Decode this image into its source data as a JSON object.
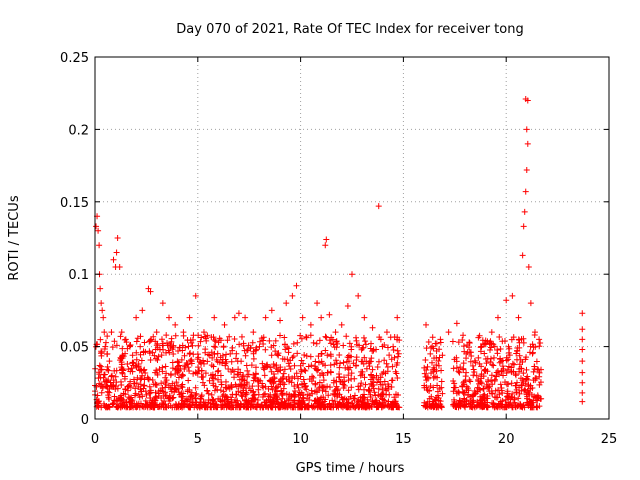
{
  "chart_data": {
    "type": "scatter",
    "title": "Day 070 of 2021, Rate Of TEC Index for receiver tong",
    "xlabel": "GPS time / hours",
    "ylabel": "ROTI / TECUs",
    "xlim": [
      0,
      25
    ],
    "ylim": [
      0,
      0.25
    ],
    "x_ticks": [
      0,
      5,
      10,
      15,
      20,
      25
    ],
    "x_tick_labels": [
      "0",
      "5",
      "10",
      "15",
      "20",
      "25"
    ],
    "y_ticks": [
      0,
      0.05,
      0.1,
      0.15,
      0.2,
      0.25
    ],
    "y_tick_labels": [
      "0",
      "0.05",
      "0.1",
      "0.15",
      "0.2",
      "0.25"
    ],
    "grid": true,
    "marker": "+",
    "color": "#ff0000",
    "series": [
      {
        "name": "ROTI",
        "note": "dense cloud of many points; values below are a representative estimate read from the figure",
        "points": [
          [
            0.05,
            0.133
          ],
          [
            0.1,
            0.14
          ],
          [
            0.15,
            0.13
          ],
          [
            0.2,
            0.12
          ],
          [
            0.22,
            0.1
          ],
          [
            0.25,
            0.09
          ],
          [
            0.3,
            0.08
          ],
          [
            0.35,
            0.075
          ],
          [
            0.4,
            0.07
          ],
          [
            0.45,
            0.06
          ],
          [
            0.5,
            0.05
          ],
          [
            0.6,
            0.045
          ],
          [
            0.7,
            0.04
          ],
          [
            0.8,
            0.06
          ],
          [
            0.9,
            0.11
          ],
          [
            1.0,
            0.105
          ],
          [
            1.05,
            0.115
          ],
          [
            1.1,
            0.125
          ],
          [
            1.2,
            0.105
          ],
          [
            1.3,
            0.06
          ],
          [
            1.5,
            0.055
          ],
          [
            1.7,
            0.05
          ],
          [
            2.0,
            0.07
          ],
          [
            2.3,
            0.075
          ],
          [
            2.6,
            0.09
          ],
          [
            2.7,
            0.088
          ],
          [
            3.0,
            0.06
          ],
          [
            3.3,
            0.08
          ],
          [
            3.6,
            0.07
          ],
          [
            3.9,
            0.065
          ],
          [
            4.3,
            0.06
          ],
          [
            4.6,
            0.07
          ],
          [
            4.9,
            0.085
          ],
          [
            5.3,
            0.06
          ],
          [
            5.8,
            0.07
          ],
          [
            6.3,
            0.065
          ],
          [
            6.8,
            0.07
          ],
          [
            7.0,
            0.073
          ],
          [
            7.3,
            0.07
          ],
          [
            7.7,
            0.06
          ],
          [
            8.0,
            0.05
          ],
          [
            8.3,
            0.07
          ],
          [
            8.6,
            0.075
          ],
          [
            9.0,
            0.068
          ],
          [
            9.3,
            0.08
          ],
          [
            9.6,
            0.085
          ],
          [
            9.8,
            0.092
          ],
          [
            10.1,
            0.07
          ],
          [
            10.5,
            0.065
          ],
          [
            10.8,
            0.08
          ],
          [
            11.0,
            0.07
          ],
          [
            11.2,
            0.12
          ],
          [
            11.25,
            0.124
          ],
          [
            11.4,
            0.072
          ],
          [
            11.7,
            0.06
          ],
          [
            12.0,
            0.065
          ],
          [
            12.3,
            0.078
          ],
          [
            12.5,
            0.1
          ],
          [
            12.8,
            0.085
          ],
          [
            13.1,
            0.07
          ],
          [
            13.5,
            0.063
          ],
          [
            13.8,
            0.147
          ],
          [
            14.2,
            0.06
          ],
          [
            14.5,
            0.05
          ],
          [
            14.7,
            0.07
          ],
          [
            16.1,
            0.065
          ],
          [
            16.4,
            0.05
          ],
          [
            16.8,
            0.055
          ],
          [
            17.2,
            0.06
          ],
          [
            17.6,
            0.066
          ],
          [
            18.2,
            0.053
          ],
          [
            18.8,
            0.05
          ],
          [
            19.3,
            0.06
          ],
          [
            19.6,
            0.07
          ],
          [
            20.0,
            0.082
          ],
          [
            20.3,
            0.085
          ],
          [
            20.6,
            0.07
          ],
          [
            20.8,
            0.113
          ],
          [
            20.85,
            0.133
          ],
          [
            20.9,
            0.143
          ],
          [
            20.95,
            0.157
          ],
          [
            21.0,
            0.172
          ],
          [
            21.05,
            0.19
          ],
          [
            21.0,
            0.2
          ],
          [
            21.05,
            0.22
          ],
          [
            20.95,
            0.221
          ],
          [
            21.1,
            0.105
          ],
          [
            21.2,
            0.08
          ],
          [
            21.4,
            0.06
          ],
          [
            21.6,
            0.055
          ],
          [
            23.7,
            0.073
          ],
          [
            23.7,
            0.062
          ],
          [
            23.7,
            0.055
          ],
          [
            23.7,
            0.048
          ],
          [
            23.7,
            0.04
          ],
          [
            23.7,
            0.032
          ],
          [
            23.7,
            0.025
          ],
          [
            23.7,
            0.018
          ],
          [
            23.7,
            0.012
          ]
        ]
      }
    ]
  }
}
